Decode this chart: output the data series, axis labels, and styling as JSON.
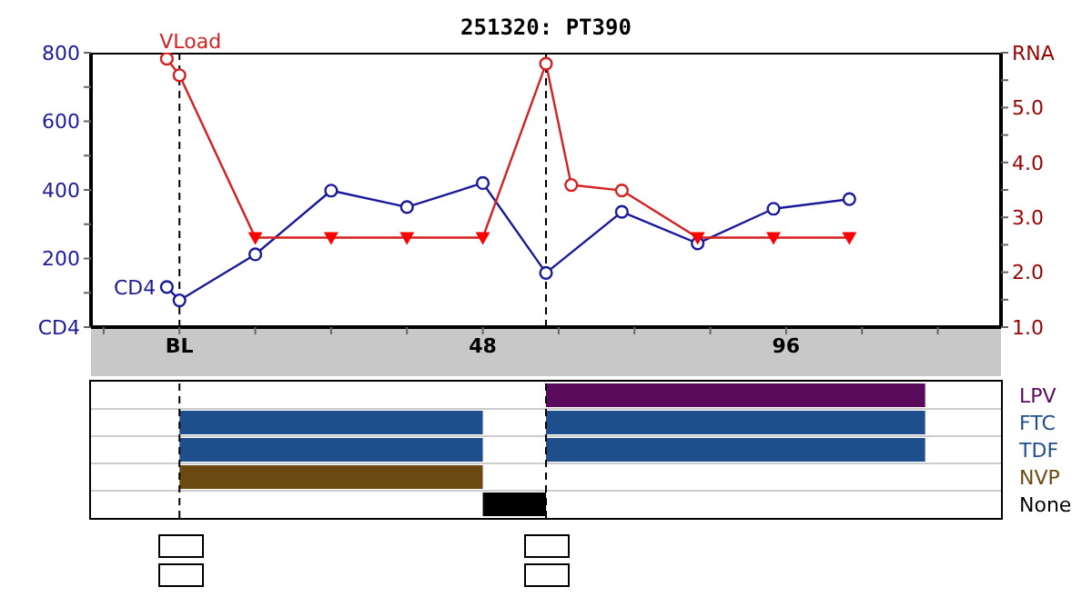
{
  "chart_data": [
    {
      "type": "line",
      "title": "251320: PT390",
      "xlim": [
        -14,
        130
      ],
      "xticks": [
        {
          "value": -12,
          "label": null
        },
        {
          "value": 0,
          "label": "BL"
        },
        {
          "value": 12,
          "label": null
        },
        {
          "value": 24,
          "label": null
        },
        {
          "value": 36,
          "label": null
        },
        48,
        {
          "value": 60,
          "label": null
        },
        {
          "value": 72,
          "label": null
        },
        {
          "value": 84,
          "label": null
        },
        96,
        {
          "value": 108,
          "label": null
        },
        {
          "value": 120,
          "label": null
        }
      ],
      "ylim": [
        0,
        800
      ],
      "yticks": [
        {
          "value": 0,
          "label": "CD4"
        },
        {
          "value": 100,
          "label": null
        },
        200,
        {
          "value": 300,
          "label": null
        },
        400,
        {
          "value": 500,
          "label": null
        },
        600,
        {
          "value": 700,
          "label": null
        },
        800
      ],
      "y2lim": [
        1,
        6
      ],
      "y2ticks": [
        {
          "value": 1,
          "label": "1.0"
        },
        {
          "value": 1.5,
          "label": null
        },
        {
          "value": 2,
          "label": "2.0"
        },
        {
          "value": 2.5,
          "label": null
        },
        {
          "value": 3,
          "label": "3.0"
        },
        {
          "value": 3.5,
          "label": null
        },
        {
          "value": 4,
          "label": "4.0"
        },
        {
          "value": 4.5,
          "label": null
        },
        {
          "value": 5,
          "label": "5.0"
        },
        {
          "value": 5.5,
          "label": null
        },
        {
          "value": 6,
          "label": "RNA"
        }
      ],
      "grid": false,
      "series": [
        {
          "name": "CD4",
          "type": "line",
          "color": "#1a1a9a",
          "marker": "circle",
          "x": [
            -2,
            0,
            12,
            24,
            36,
            48,
            58,
            70,
            82,
            94,
            106
          ],
          "values": [
            117,
            78,
            212,
            398,
            350,
            420,
            158,
            336,
            244,
            345,
            373
          ]
        },
        {
          "name": "VLoad",
          "type": "line",
          "axis": "y2",
          "color": "#d42020",
          "marker": "none",
          "x": [
            -2,
            0,
            12,
            24,
            36,
            48,
            58,
            62,
            70,
            82,
            94,
            106
          ],
          "values": [
            5.89,
            5.59,
            2.63,
            2.63,
            2.63,
            2.63,
            5.8,
            3.59,
            3.49,
            2.63,
            2.63,
            2.63
          ]
        },
        {
          "type": "scatter",
          "axis": "y2",
          "color": "#d42020",
          "marker": "circle",
          "x": [
            -2,
            0,
            58,
            62,
            70
          ],
          "values": [
            5.89,
            5.59,
            5.8,
            3.59,
            3.49
          ]
        },
        {
          "type": "scatter",
          "axis": "y2",
          "color": "#ff0000",
          "marker": "triangle",
          "x": [
            12,
            24,
            36,
            48,
            82,
            94,
            106
          ],
          "values": [
            2.63,
            2.63,
            2.63,
            2.63,
            2.63,
            2.63,
            2.63
          ]
        }
      ],
      "ref_lines": [
        {
          "axis": "x",
          "value": 0,
          "color": "#000000",
          "line_style": "dashed"
        },
        {
          "axis": "x",
          "value": 58,
          "color": "#000000",
          "line_style": "dashed"
        }
      ]
    },
    {
      "type": "bar",
      "orientation": "horizontal",
      "categories": [
        "LPV",
        "FTC",
        "TDF",
        "NVP",
        "None"
      ],
      "xlim": [
        -14,
        130
      ],
      "tick_labels": "y",
      "grid": "y",
      "series": [
        {
          "colors": [
            null,
            "#1f4e8c",
            "#1f4e8c",
            "#6b4a12",
            "#000000"
          ],
          "base": [
            null,
            0,
            0,
            0,
            48
          ],
          "values": [
            null,
            48,
            48,
            48,
            10
          ]
        },
        {
          "colors": [
            "#5a0a5a",
            "#1f4e8c",
            "#1f4e8c",
            null,
            null
          ],
          "base": [
            58,
            58,
            58,
            null,
            null
          ],
          "values": [
            60,
            60,
            60,
            null,
            null
          ]
        }
      ],
      "ref_lines": [
        {
          "axis": "x",
          "value": 0,
          "color": "#000000",
          "line_style": "dashed"
        },
        {
          "axis": "x",
          "value": 58,
          "color": "#000000",
          "line_style": "dashed"
        }
      ]
    }
  ]
}
